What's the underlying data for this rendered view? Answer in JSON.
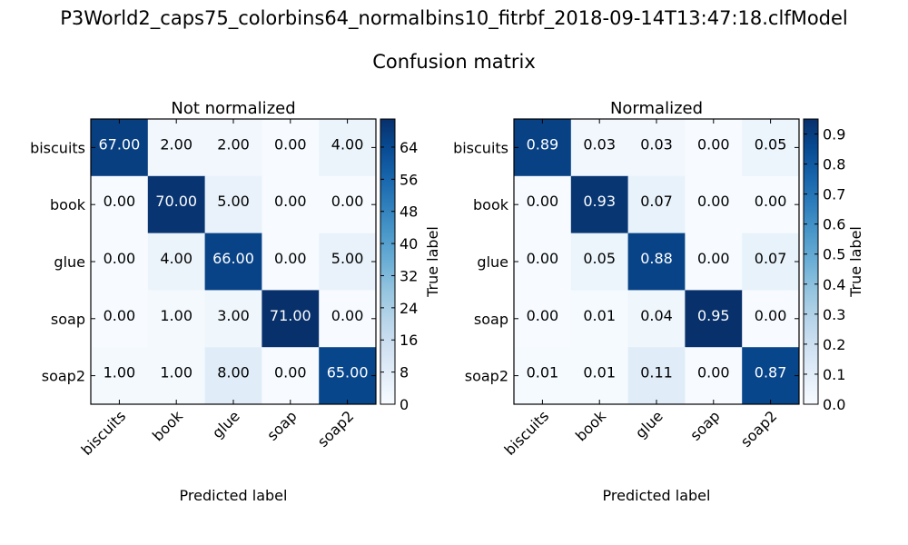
{
  "figure": {
    "title": "P3World2_caps75_colorbins64_normalbins10_fitrbf_2018-09-14T13:47:18.clfModel",
    "subtitle": "Confusion matrix"
  },
  "chart_data": [
    {
      "type": "heatmap",
      "title": "Not normalized",
      "xlabel": "Predicted label",
      "ylabel": "True label",
      "rows": [
        "biscuits",
        "book",
        "glue",
        "soap",
        "soap2"
      ],
      "cols": [
        "biscuits",
        "book",
        "glue",
        "soap",
        "soap2"
      ],
      "values": [
        [
          67,
          2,
          2,
          0,
          4
        ],
        [
          0,
          70,
          5,
          0,
          0
        ],
        [
          0,
          4,
          66,
          0,
          5
        ],
        [
          0,
          1,
          3,
          71,
          0
        ],
        [
          1,
          1,
          8,
          0,
          65
        ]
      ],
      "cell_labels": [
        [
          "67.00",
          "2.00",
          "2.00",
          "0.00",
          "4.00"
        ],
        [
          "0.00",
          "70.00",
          "5.00",
          "0.00",
          "0.00"
        ],
        [
          "0.00",
          "4.00",
          "66.00",
          "0.00",
          "5.00"
        ],
        [
          "0.00",
          "1.00",
          "3.00",
          "71.00",
          "0.00"
        ],
        [
          "1.00",
          "1.00",
          "8.00",
          "0.00",
          "65.00"
        ]
      ],
      "colorbar": {
        "min": 0,
        "max": 71,
        "ticks": [
          "0",
          "8",
          "16",
          "24",
          "32",
          "40",
          "48",
          "56",
          "64"
        ],
        "tick_values": [
          0,
          8,
          16,
          24,
          32,
          40,
          48,
          56,
          64
        ]
      },
      "colormap": "Blues",
      "grid": false
    },
    {
      "type": "heatmap",
      "title": "Normalized",
      "xlabel": "Predicted label",
      "ylabel": "True label",
      "rows": [
        "biscuits",
        "book",
        "glue",
        "soap",
        "soap2"
      ],
      "cols": [
        "biscuits",
        "book",
        "glue",
        "soap",
        "soap2"
      ],
      "values": [
        [
          0.89,
          0.03,
          0.03,
          0.0,
          0.05
        ],
        [
          0.0,
          0.93,
          0.07,
          0.0,
          0.0
        ],
        [
          0.0,
          0.05,
          0.88,
          0.0,
          0.07
        ],
        [
          0.0,
          0.01,
          0.04,
          0.95,
          0.0
        ],
        [
          0.01,
          0.01,
          0.11,
          0.0,
          0.87
        ]
      ],
      "cell_labels": [
        [
          "0.89",
          "0.03",
          "0.03",
          "0.00",
          "0.05"
        ],
        [
          "0.00",
          "0.93",
          "0.07",
          "0.00",
          "0.00"
        ],
        [
          "0.00",
          "0.05",
          "0.88",
          "0.00",
          "0.07"
        ],
        [
          "0.00",
          "0.01",
          "0.04",
          "0.95",
          "0.00"
        ],
        [
          "0.01",
          "0.01",
          "0.11",
          "0.00",
          "0.87"
        ]
      ],
      "colorbar": {
        "min": 0,
        "max": 0.95,
        "ticks": [
          "0.0",
          "0.1",
          "0.2",
          "0.3",
          "0.4",
          "0.5",
          "0.6",
          "0.7",
          "0.8",
          "0.9"
        ],
        "tick_values": [
          0,
          0.1,
          0.2,
          0.3,
          0.4,
          0.5,
          0.6,
          0.7,
          0.8,
          0.9
        ]
      },
      "colormap": "Blues",
      "grid": false
    }
  ]
}
